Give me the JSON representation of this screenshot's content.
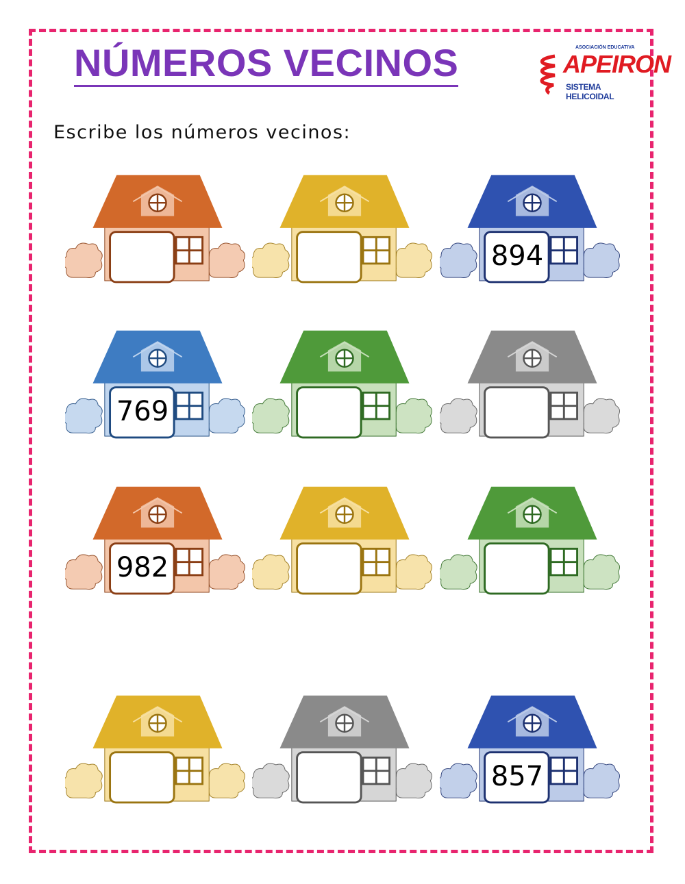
{
  "title": "NÚMEROS VECINOS",
  "logo": {
    "association": "ASOCIACIÓN EDUCATIVA",
    "brand": "APEIRON",
    "subtitle": "SISTEMA HELICOIDAL"
  },
  "instruction": "Escribe los números vecinos:",
  "colors": {
    "border": "#e8246e",
    "title": "#7a35b8",
    "orange": {
      "roof": "#d2692a",
      "wall": "#f3c6aa",
      "stroke": "#8a3e14"
    },
    "yellow": {
      "roof": "#e0b22a",
      "wall": "#f7e0a2",
      "stroke": "#9a7410"
    },
    "blue": {
      "roof": "#2f52b0",
      "wall": "#bccbe8",
      "stroke": "#1d3170"
    },
    "lightblue": {
      "roof": "#3e7cc2",
      "wall": "#c0d5ee",
      "stroke": "#1e4a80"
    },
    "green": {
      "roof": "#4f9a3a",
      "wall": "#c8e0bc",
      "stroke": "#2e6a22"
    },
    "gray": {
      "roof": "#8a8a8a",
      "wall": "#d6d6d6",
      "stroke": "#555555"
    }
  },
  "houses": [
    {
      "color": "orange",
      "number": ""
    },
    {
      "color": "yellow",
      "number": ""
    },
    {
      "color": "blue",
      "number": "894"
    },
    {
      "color": "lightblue",
      "number": "769"
    },
    {
      "color": "green",
      "number": ""
    },
    {
      "color": "gray",
      "number": ""
    },
    {
      "color": "orange",
      "number": "982"
    },
    {
      "color": "yellow",
      "number": ""
    },
    {
      "color": "green",
      "number": ""
    },
    {
      "color": "yellow",
      "number": ""
    },
    {
      "color": "gray",
      "number": ""
    },
    {
      "color": "blue",
      "number": "857"
    }
  ]
}
